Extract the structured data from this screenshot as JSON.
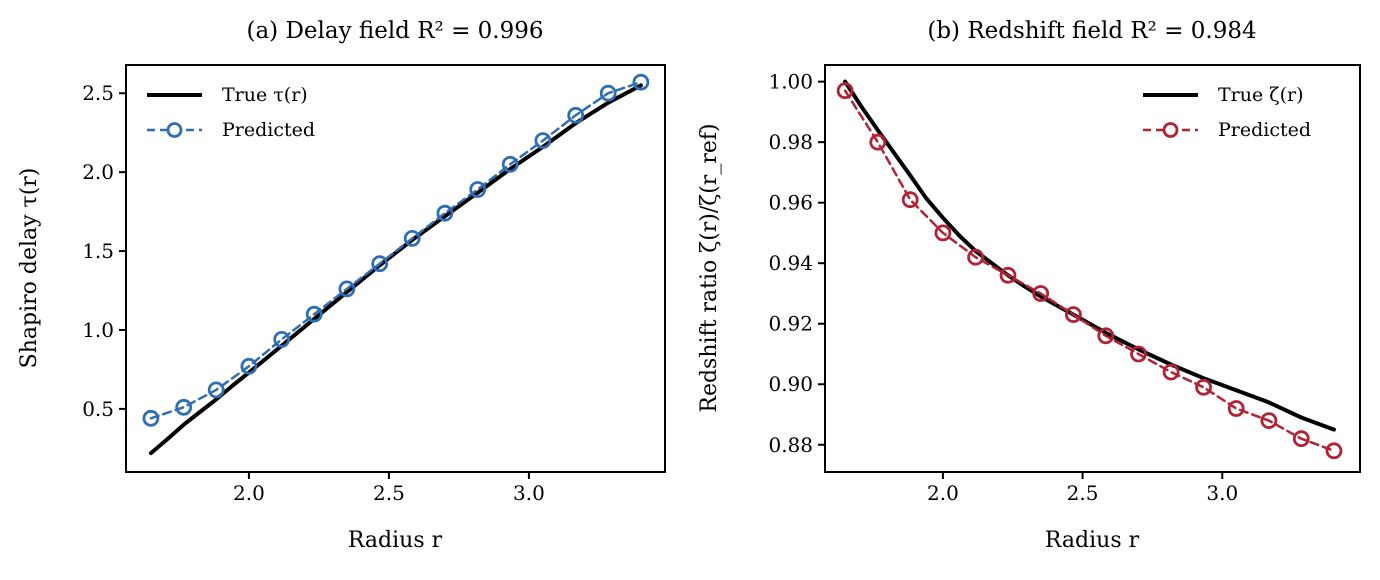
{
  "figure": {
    "background": "#ffffff"
  },
  "chart_data": [
    {
      "type": "line",
      "title": "(a) Delay field  R² = 0.996",
      "r_squared": "0.996",
      "xlabel": "Radius r",
      "ylabel": "Shapiro delay τ(r)",
      "xlim": [
        1.561,
        3.486
      ],
      "ylim": [
        0.1,
        2.679
      ],
      "xticks": [
        2.0,
        2.5,
        3.0
      ],
      "xtick_labels": [
        "2.0",
        "2.5",
        "3.0"
      ],
      "yticks": [
        0.5,
        1.0,
        1.5,
        2.0,
        2.5
      ],
      "ytick_labels": [
        "0.5",
        "1.0",
        "1.5",
        "2.0",
        "2.5"
      ],
      "grid": false,
      "legend": {
        "position": "upper-left",
        "entries": [
          "True τ(r)",
          "Predicted"
        ]
      },
      "series": [
        {
          "name": "True τ(r)",
          "style": "solid",
          "color": "#000000",
          "line_width": 4,
          "x": [
            1.65,
            1.71,
            1.767,
            1.825,
            1.883,
            1.94,
            2.0,
            2.117,
            2.233,
            2.35,
            2.467,
            2.583,
            2.7,
            2.817,
            2.933,
            3.05,
            3.167,
            3.283,
            3.4
          ],
          "y": [
            0.22,
            0.31,
            0.4,
            0.48,
            0.56,
            0.645,
            0.73,
            0.9,
            1.07,
            1.24,
            1.41,
            1.57,
            1.72,
            1.87,
            2.02,
            2.16,
            2.31,
            2.44,
            2.55
          ]
        },
        {
          "name": "Predicted",
          "style": "dashed-circle",
          "color": "#2f6db4",
          "line_width": 2.5,
          "x": [
            1.65,
            1.767,
            1.883,
            2.0,
            2.117,
            2.233,
            2.35,
            2.467,
            2.583,
            2.7,
            2.817,
            2.933,
            3.05,
            3.167,
            3.283,
            3.4
          ],
          "y": [
            0.44,
            0.51,
            0.62,
            0.77,
            0.94,
            1.1,
            1.26,
            1.42,
            1.58,
            1.74,
            1.89,
            2.05,
            2.2,
            2.36,
            2.5,
            2.57
          ]
        }
      ]
    },
    {
      "type": "line",
      "title": "(b) Redshift field  R² = 0.984",
      "r_squared": "0.984",
      "xlabel": "Radius r",
      "ylabel": "Redshift ratio ζ(r)/ζ(r_ref)",
      "xlim": [
        1.578,
        3.493
      ],
      "ylim": [
        0.871,
        1.0055
      ],
      "xticks": [
        2.0,
        2.5,
        3.0
      ],
      "xtick_labels": [
        "2.0",
        "2.5",
        "3.0"
      ],
      "yticks": [
        0.88,
        0.9,
        0.92,
        0.94,
        0.96,
        0.98,
        1.0
      ],
      "ytick_labels": [
        "0.88",
        "0.90",
        "0.92",
        "0.94",
        "0.96",
        "0.98",
        "1.00"
      ],
      "grid": false,
      "legend": {
        "position": "upper-right",
        "entries": [
          "True ζ(r)",
          "Predicted"
        ]
      },
      "series": [
        {
          "name": "True ζ(r)",
          "style": "solid",
          "color": "#000000",
          "line_width": 4,
          "x": [
            1.65,
            1.71,
            1.767,
            1.825,
            1.883,
            1.94,
            2.0,
            2.06,
            2.117,
            2.175,
            2.233,
            2.29,
            2.35,
            2.467,
            2.583,
            2.7,
            2.817,
            2.933,
            3.05,
            3.167,
            3.283,
            3.4
          ],
          "y": [
            1.0,
            0.9915,
            0.984,
            0.9765,
            0.969,
            0.9615,
            0.955,
            0.949,
            0.944,
            0.94,
            0.936,
            0.9325,
            0.929,
            0.923,
            0.917,
            0.9115,
            0.9065,
            0.902,
            0.898,
            0.894,
            0.889,
            0.885
          ]
        },
        {
          "name": "Predicted",
          "style": "dashed-circle",
          "color": "#b22234",
          "line_width": 2.5,
          "x": [
            1.65,
            1.767,
            1.883,
            2.0,
            2.117,
            2.233,
            2.35,
            2.467,
            2.583,
            2.7,
            2.817,
            2.933,
            3.05,
            3.167,
            3.283,
            3.4
          ],
          "y": [
            0.997,
            0.98,
            0.961,
            0.95,
            0.942,
            0.936,
            0.93,
            0.923,
            0.916,
            0.91,
            0.904,
            0.899,
            0.892,
            0.888,
            0.882,
            0.878
          ]
        }
      ]
    }
  ]
}
